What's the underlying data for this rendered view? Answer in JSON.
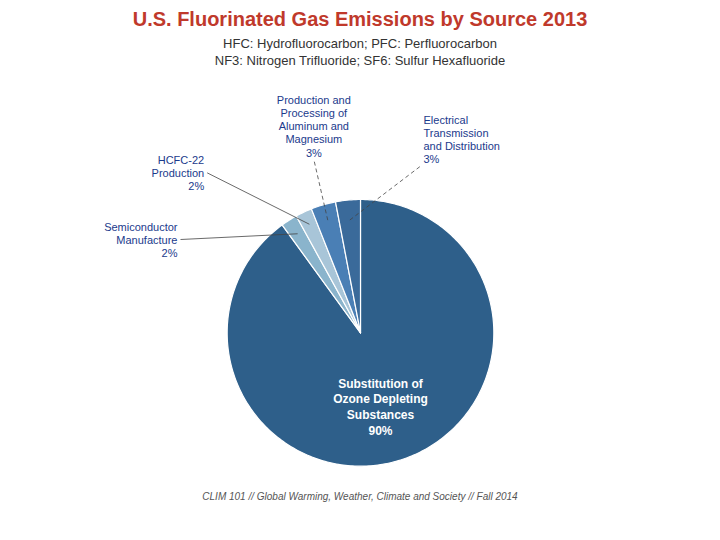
{
  "chart_data": {
    "type": "pie",
    "title": "U.S. Fluorinated Gas Emissions by Source 2013",
    "subtitle": [
      "HFC: Hydrofluorocarbon; PFC: Perfluorocarbon",
      "NF3: Nitrogen Trifluoride; SF6: Sulfur Hexafluoride"
    ],
    "annotations": [
      "CLIM 101 // Global Warming, Weather, Climate and Society // Fall 2014"
    ],
    "categories": [
      "Substitution of\nOzone Depleting\nSubstances",
      "Semiconductor\nManufacture",
      "HCFC-22\nProduction",
      "Production and\nProcessing of\nAluminum and\nMagnesium",
      "Electrical\nTransmission\nand Distribution"
    ],
    "values": [
      90,
      2,
      2,
      3,
      3
    ],
    "value_labels": [
      "90%",
      "2%",
      "2%",
      "3%",
      "3%"
    ],
    "colors": [
      "#2E5F8A",
      "#8AB4CC",
      "#A8C5D8",
      "#4A7FB5",
      "#3A6A9A"
    ],
    "data_labels": true,
    "tick_labels": false
  }
}
